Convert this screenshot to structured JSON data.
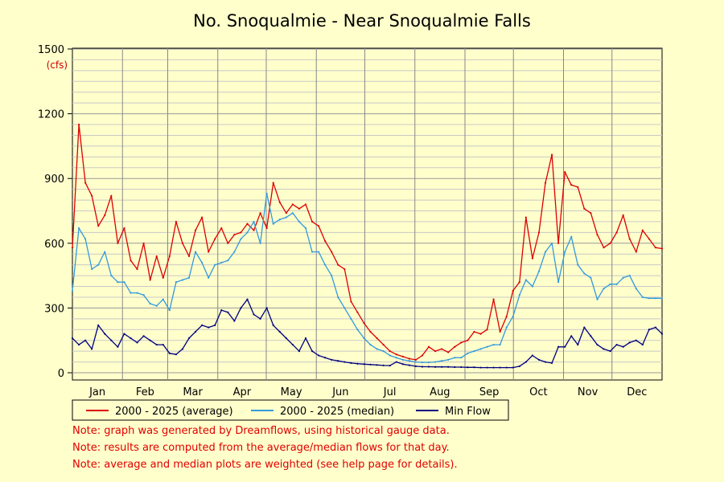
{
  "chart_data": {
    "type": "line",
    "title": "No. Snoqualmie - Near Snoqualmie Falls",
    "ylabel": "(cfs)",
    "ylim": [
      0,
      1500
    ],
    "y_ticks": [
      "0",
      "300",
      "600",
      "900",
      "1200",
      "1500"
    ],
    "x_ticks": [
      "Jan",
      "Feb",
      "Mar",
      "Apr",
      "May",
      "Jun",
      "Jul",
      "Aug",
      "Sep",
      "Oct",
      "Nov",
      "Dec"
    ],
    "grid": true,
    "legend_position": "bottom",
    "x": [
      1,
      5,
      9,
      13,
      17,
      21,
      25,
      29,
      33,
      37,
      41,
      45,
      49,
      53,
      57,
      61,
      65,
      69,
      73,
      77,
      81,
      85,
      89,
      93,
      97,
      101,
      105,
      109,
      113,
      117,
      121,
      125,
      129,
      133,
      137,
      141,
      145,
      149,
      153,
      157,
      161,
      165,
      169,
      173,
      177,
      181,
      185,
      189,
      193,
      197,
      201,
      205,
      209,
      213,
      217,
      221,
      225,
      229,
      233,
      237,
      241,
      245,
      249,
      253,
      257,
      261,
      265,
      269,
      273,
      277,
      281,
      285,
      289,
      293,
      297,
      301,
      305,
      309,
      313,
      317,
      321,
      325,
      329,
      333,
      337,
      341,
      345,
      349,
      353,
      357,
      361,
      365
    ],
    "series": [
      {
        "name": "2000 - 2025 (average)",
        "color": "#dd0000",
        "values": [
          580,
          1150,
          880,
          820,
          680,
          730,
          820,
          600,
          670,
          520,
          480,
          600,
          430,
          540,
          440,
          540,
          700,
          600,
          540,
          660,
          720,
          560,
          620,
          670,
          600,
          640,
          650,
          690,
          660,
          740,
          670,
          880,
          790,
          740,
          780,
          760,
          780,
          700,
          680,
          610,
          560,
          500,
          480,
          330,
          280,
          230,
          190,
          160,
          130,
          100,
          85,
          75,
          65,
          60,
          80,
          120,
          100,
          110,
          95,
          120,
          140,
          150,
          190,
          180,
          200,
          340,
          190,
          260,
          380,
          420,
          720,
          530,
          650,
          880,
          1010,
          600,
          930,
          870,
          860,
          760,
          740,
          640,
          580,
          600,
          650,
          730,
          620,
          560,
          660,
          620,
          580,
          575
        ]
      },
      {
        "name": "2000 - 2025 (median)",
        "color": "#3399dd",
        "values": [
          380,
          670,
          620,
          480,
          500,
          560,
          450,
          420,
          420,
          370,
          370,
          360,
          320,
          310,
          340,
          290,
          420,
          430,
          440,
          560,
          510,
          440,
          500,
          510,
          520,
          560,
          620,
          650,
          700,
          600,
          830,
          690,
          710,
          720,
          740,
          700,
          670,
          560,
          560,
          500,
          450,
          350,
          300,
          250,
          200,
          160,
          130,
          110,
          100,
          80,
          70,
          60,
          55,
          50,
          48,
          48,
          50,
          55,
          60,
          70,
          70,
          90,
          100,
          110,
          120,
          130,
          130,
          210,
          260,
          360,
          430,
          400,
          470,
          560,
          600,
          420,
          560,
          630,
          500,
          460,
          440,
          340,
          390,
          410,
          410,
          440,
          450,
          390,
          350,
          345,
          345,
          345
        ]
      },
      {
        "name": "Min Flow",
        "color": "#000080",
        "values": [
          160,
          130,
          150,
          110,
          220,
          180,
          150,
          120,
          180,
          160,
          140,
          170,
          150,
          130,
          130,
          90,
          85,
          110,
          160,
          190,
          220,
          210,
          220,
          290,
          280,
          240,
          300,
          340,
          270,
          250,
          300,
          220,
          190,
          160,
          130,
          100,
          160,
          100,
          80,
          70,
          60,
          55,
          50,
          45,
          42,
          40,
          38,
          36,
          34,
          33,
          50,
          40,
          35,
          30,
          28,
          28,
          27,
          27,
          27,
          26,
          26,
          25,
          25,
          24,
          24,
          24,
          24,
          24,
          24,
          30,
          50,
          80,
          60,
          50,
          45,
          120,
          120,
          170,
          130,
          210,
          170,
          130,
          110,
          100,
          130,
          120,
          140,
          150,
          130,
          200,
          210,
          180
        ]
      }
    ]
  },
  "notes": [
    "Note: graph was generated by Dreamflows, using historical gauge data.",
    "Note: results are computed from the average/median flows for that day.",
    "Note: average and median plots are weighted (see help page for details)."
  ]
}
